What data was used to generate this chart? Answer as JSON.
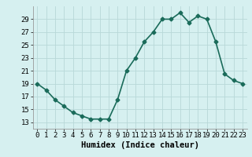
{
  "xlabel": "Humidex (Indice chaleur)",
  "x": [
    0,
    1,
    2,
    3,
    4,
    5,
    6,
    7,
    8,
    9,
    10,
    11,
    12,
    13,
    14,
    15,
    16,
    17,
    18,
    19,
    20,
    21,
    22,
    23
  ],
  "y": [
    19,
    18,
    16.5,
    15.5,
    14.5,
    14,
    13.5,
    13.5,
    13.5,
    16.5,
    21,
    23,
    25.5,
    27,
    29,
    29,
    30,
    28.5,
    29.5,
    29,
    25.5,
    20.5,
    19.5,
    19
  ],
  "line_color": "#1a6b5a",
  "marker": "D",
  "marker_size": 2.5,
  "bg_color": "#d6f0f0",
  "grid_color": "#b8d8d8",
  "ylim": [
    12,
    31
  ],
  "yticks": [
    13,
    15,
    17,
    19,
    21,
    23,
    25,
    27,
    29
  ],
  "xlim": [
    -0.5,
    23.5
  ],
  "xticks": [
    0,
    1,
    2,
    3,
    4,
    5,
    6,
    7,
    8,
    9,
    10,
    11,
    12,
    13,
    14,
    15,
    16,
    17,
    18,
    19,
    20,
    21,
    22,
    23
  ],
  "xlabel_fontsize": 7.5,
  "tick_fontsize": 6.5,
  "line_width": 1.2
}
